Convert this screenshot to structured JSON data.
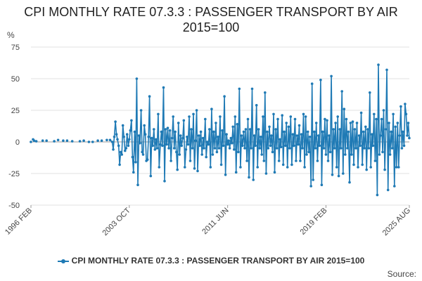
{
  "chart_data": {
    "type": "line",
    "title": "CPI MONTHLY RATE 07.3.3 : PASSENGER TRANSPORT BY AIR 2015=100",
    "ylabel": "%",
    "xlabel": "",
    "ylim": [
      -50,
      75
    ],
    "yticks": [
      -50,
      -25,
      0,
      25,
      50,
      75
    ],
    "xticks": [
      {
        "label": "1996 FEB",
        "x": 1996.083
      },
      {
        "label": "2003 OCT",
        "x": 2003.75
      },
      {
        "label": "2011 JUN",
        "x": 2011.417
      },
      {
        "label": "2019 FEB",
        "x": 2019.083
      },
      {
        "label": "2025 AUG",
        "x": 2025.583
      }
    ],
    "xlim": [
      1996.083,
      2025.583
    ],
    "grid": "horizontal",
    "legend_placement": "bottom",
    "colors": {
      "series": "#1f7ab5",
      "grid": "#e0e0e0",
      "zero_line": "#999999"
    },
    "series": [
      {
        "name": "CPI MONTHLY RATE 07.3.3 : PASSENGER TRANSPORT BY AIR 2015=100",
        "points": [
          [
            1996.08,
            0
          ],
          [
            1996.25,
            2
          ],
          [
            1996.33,
            1
          ],
          [
            1996.5,
            0.5
          ],
          [
            1997.0,
            1
          ],
          [
            1997.3,
            1
          ],
          [
            1997.9,
            0.5
          ],
          [
            1998.2,
            1.5
          ],
          [
            1998.6,
            1
          ],
          [
            1998.9,
            1
          ],
          [
            1999.3,
            0.5
          ],
          [
            1999.9,
            0.5
          ],
          [
            2000.2,
            1
          ],
          [
            2000.6,
            0
          ],
          [
            2000.9,
            0
          ],
          [
            2001.3,
            1
          ],
          [
            2001.6,
            1
          ],
          [
            2002.0,
            1.5
          ],
          [
            2002.25,
            1.5
          ],
          [
            2002.42,
            0
          ],
          [
            2002.5,
            -6
          ],
          [
            2002.58,
            4
          ],
          [
            2002.67,
            16
          ],
          [
            2002.75,
            6
          ],
          [
            2002.83,
            2
          ],
          [
            2002.92,
            -3
          ],
          [
            2003.0,
            -18
          ],
          [
            2003.08,
            -8
          ],
          [
            2003.17,
            -10
          ],
          [
            2003.25,
            13
          ],
          [
            2003.33,
            4
          ],
          [
            2003.42,
            -7
          ],
          [
            2003.5,
            -5
          ],
          [
            2003.58,
            6
          ],
          [
            2003.67,
            -3
          ],
          [
            2003.75,
            2
          ],
          [
            2003.83,
            9
          ],
          [
            2003.92,
            17
          ],
          [
            2004.0,
            -12
          ],
          [
            2004.08,
            -24
          ],
          [
            2004.17,
            8
          ],
          [
            2004.25,
            -16
          ],
          [
            2004.33,
            50
          ],
          [
            2004.42,
            -34
          ],
          [
            2004.5,
            5
          ],
          [
            2004.58,
            -1
          ],
          [
            2004.67,
            25
          ],
          [
            2004.75,
            -8
          ],
          [
            2004.83,
            -10
          ],
          [
            2004.92,
            13
          ],
          [
            2005.0,
            6
          ],
          [
            2005.08,
            -15
          ],
          [
            2005.17,
            -14
          ],
          [
            2005.25,
            4
          ],
          [
            2005.33,
            36
          ],
          [
            2005.42,
            -27
          ],
          [
            2005.5,
            3
          ],
          [
            2005.58,
            -3
          ],
          [
            2005.67,
            10
          ],
          [
            2005.75,
            -6
          ],
          [
            2005.83,
            2
          ],
          [
            2005.92,
            -5
          ],
          [
            2006.0,
            22
          ],
          [
            2006.08,
            -20
          ],
          [
            2006.17,
            -2
          ],
          [
            2006.25,
            8
          ],
          [
            2006.33,
            -3
          ],
          [
            2006.42,
            43
          ],
          [
            2006.5,
            -31
          ],
          [
            2006.58,
            10
          ],
          [
            2006.67,
            -2
          ],
          [
            2006.75,
            11
          ],
          [
            2006.83,
            -5
          ],
          [
            2006.92,
            9
          ],
          [
            2007.0,
            -15
          ],
          [
            2007.08,
            3
          ],
          [
            2007.17,
            20
          ],
          [
            2007.25,
            -5
          ],
          [
            2007.33,
            8
          ],
          [
            2007.42,
            -8
          ],
          [
            2007.5,
            -22
          ],
          [
            2007.58,
            15
          ],
          [
            2007.67,
            -10
          ],
          [
            2007.75,
            5
          ],
          [
            2007.83,
            -3
          ],
          [
            2007.92,
            3
          ],
          [
            2008.0,
            17
          ],
          [
            2008.08,
            -20
          ],
          [
            2008.17,
            -6
          ],
          [
            2008.25,
            4
          ],
          [
            2008.33,
            -2
          ],
          [
            2008.42,
            20
          ],
          [
            2008.5,
            -15
          ],
          [
            2008.58,
            10
          ],
          [
            2008.67,
            -5
          ],
          [
            2008.75,
            22
          ],
          [
            2008.83,
            -21
          ],
          [
            2008.92,
            1
          ],
          [
            2009.0,
            25
          ],
          [
            2009.08,
            -23
          ],
          [
            2009.17,
            5
          ],
          [
            2009.25,
            -3
          ],
          [
            2009.33,
            8
          ],
          [
            2009.42,
            -10
          ],
          [
            2009.5,
            3
          ],
          [
            2009.58,
            -5
          ],
          [
            2009.67,
            18
          ],
          [
            2009.75,
            -12
          ],
          [
            2009.83,
            0
          ],
          [
            2009.92,
            -2
          ],
          [
            2010.0,
            10
          ],
          [
            2010.08,
            -20
          ],
          [
            2010.17,
            26
          ],
          [
            2010.25,
            -10
          ],
          [
            2010.33,
            8
          ],
          [
            2010.42,
            -5
          ],
          [
            2010.5,
            15
          ],
          [
            2010.58,
            -8
          ],
          [
            2010.67,
            4
          ],
          [
            2010.75,
            -5
          ],
          [
            2010.83,
            20
          ],
          [
            2010.92,
            -18
          ],
          [
            2011.0,
            9
          ],
          [
            2011.08,
            -3
          ],
          [
            2011.17,
            36
          ],
          [
            2011.25,
            -26
          ],
          [
            2011.33,
            6
          ],
          [
            2011.42,
            -2
          ],
          [
            2011.5,
            1
          ],
          [
            2011.58,
            -5
          ],
          [
            2011.67,
            3
          ],
          [
            2011.75,
            -1
          ],
          [
            2011.83,
            12
          ],
          [
            2011.92,
            -6
          ],
          [
            2012.0,
            20
          ],
          [
            2012.08,
            -24
          ],
          [
            2012.17,
            14
          ],
          [
            2012.25,
            -8
          ],
          [
            2012.33,
            42
          ],
          [
            2012.42,
            -20
          ],
          [
            2012.5,
            5
          ],
          [
            2012.58,
            -3
          ],
          [
            2012.67,
            8
          ],
          [
            2012.75,
            -5
          ],
          [
            2012.83,
            10
          ],
          [
            2012.92,
            -15
          ],
          [
            2013.0,
            18
          ],
          [
            2013.08,
            -28
          ],
          [
            2013.17,
            10
          ],
          [
            2013.25,
            -5
          ],
          [
            2013.33,
            42
          ],
          [
            2013.42,
            -30
          ],
          [
            2013.5,
            5
          ],
          [
            2013.58,
            -3
          ],
          [
            2013.67,
            29
          ],
          [
            2013.75,
            -20
          ],
          [
            2013.83,
            10
          ],
          [
            2013.92,
            -5
          ],
          [
            2014.0,
            4
          ],
          [
            2014.08,
            -10
          ],
          [
            2014.17,
            20
          ],
          [
            2014.25,
            -15
          ],
          [
            2014.33,
            39
          ],
          [
            2014.42,
            -25
          ],
          [
            2014.5,
            8
          ],
          [
            2014.58,
            -5
          ],
          [
            2014.67,
            12
          ],
          [
            2014.75,
            -3
          ],
          [
            2014.83,
            5
          ],
          [
            2014.92,
            -8
          ],
          [
            2015.0,
            22
          ],
          [
            2015.08,
            -24
          ],
          [
            2015.17,
            10
          ],
          [
            2015.25,
            -5
          ],
          [
            2015.33,
            18
          ],
          [
            2015.42,
            -15
          ],
          [
            2015.5,
            2
          ],
          [
            2015.58,
            -4
          ],
          [
            2015.67,
            21
          ],
          [
            2015.75,
            -18
          ],
          [
            2015.83,
            8
          ],
          [
            2015.92,
            -3
          ],
          [
            2016.0,
            15
          ],
          [
            2016.08,
            -20
          ],
          [
            2016.17,
            12
          ],
          [
            2016.25,
            -5
          ],
          [
            2016.33,
            20
          ],
          [
            2016.42,
            -18
          ],
          [
            2016.5,
            6
          ],
          [
            2016.58,
            -3
          ],
          [
            2016.67,
            18
          ],
          [
            2016.75,
            -15
          ],
          [
            2016.83,
            5
          ],
          [
            2016.92,
            -2
          ],
          [
            2017.0,
            13
          ],
          [
            2017.08,
            -15
          ],
          [
            2017.17,
            6
          ],
          [
            2017.25,
            -5
          ],
          [
            2017.33,
            22
          ],
          [
            2017.42,
            -20
          ],
          [
            2017.5,
            20
          ],
          [
            2017.58,
            -10
          ],
          [
            2017.67,
            8
          ],
          [
            2017.75,
            -8
          ],
          [
            2017.83,
            4
          ],
          [
            2017.92,
            -35
          ],
          [
            2018.0,
            46
          ],
          [
            2018.08,
            -30
          ],
          [
            2018.17,
            8
          ],
          [
            2018.25,
            -5
          ],
          [
            2018.33,
            15
          ],
          [
            2018.42,
            -15
          ],
          [
            2018.5,
            5
          ],
          [
            2018.58,
            -3
          ],
          [
            2018.67,
            49
          ],
          [
            2018.75,
            -34
          ],
          [
            2018.83,
            8
          ],
          [
            2018.92,
            -5
          ],
          [
            2019.0,
            18
          ],
          [
            2019.08,
            -10
          ],
          [
            2019.17,
            17
          ],
          [
            2019.25,
            -15
          ],
          [
            2019.33,
            5
          ],
          [
            2019.42,
            -8
          ],
          [
            2019.5,
            52
          ],
          [
            2019.58,
            -26
          ],
          [
            2019.67,
            10
          ],
          [
            2019.75,
            -5
          ],
          [
            2019.83,
            15
          ],
          [
            2019.92,
            -20
          ],
          [
            2020.0,
            20
          ],
          [
            2020.08,
            -27
          ],
          [
            2020.17,
            10
          ],
          [
            2020.25,
            -5
          ],
          [
            2020.33,
            40
          ],
          [
            2020.42,
            -25
          ],
          [
            2020.5,
            26
          ],
          [
            2020.58,
            -10
          ],
          [
            2020.67,
            18
          ],
          [
            2020.75,
            -5
          ],
          [
            2020.83,
            8
          ],
          [
            2020.92,
            -32
          ],
          [
            2021.0,
            15
          ],
          [
            2021.08,
            -10
          ],
          [
            2021.17,
            16
          ],
          [
            2021.25,
            -18
          ],
          [
            2021.33,
            10
          ],
          [
            2021.42,
            -5
          ],
          [
            2021.5,
            15
          ],
          [
            2021.58,
            -20
          ],
          [
            2021.67,
            5
          ],
          [
            2021.75,
            -3
          ],
          [
            2021.83,
            23
          ],
          [
            2021.92,
            -18
          ],
          [
            2022.0,
            8
          ],
          [
            2022.08,
            -5
          ],
          [
            2022.17,
            12
          ],
          [
            2022.25,
            -22
          ],
          [
            2022.33,
            10
          ],
          [
            2022.42,
            -5
          ],
          [
            2022.5,
            39
          ],
          [
            2022.58,
            -20
          ],
          [
            2022.67,
            6
          ],
          [
            2022.75,
            -3
          ],
          [
            2022.83,
            22
          ],
          [
            2022.92,
            -15
          ],
          [
            2023.0,
            18
          ],
          [
            2023.08,
            -42
          ],
          [
            2023.17,
            61
          ],
          [
            2023.25,
            -10
          ],
          [
            2023.33,
            5
          ],
          [
            2023.42,
            18
          ],
          [
            2023.5,
            -8
          ],
          [
            2023.58,
            25
          ],
          [
            2023.67,
            -22
          ],
          [
            2023.75,
            10
          ],
          [
            2023.83,
            57
          ],
          [
            2023.92,
            -38
          ],
          [
            2024.0,
            15
          ],
          [
            2024.08,
            -10
          ],
          [
            2024.17,
            8
          ],
          [
            2024.25,
            -5
          ],
          [
            2024.33,
            22
          ],
          [
            2024.42,
            -35
          ],
          [
            2024.5,
            12
          ],
          [
            2024.58,
            -20
          ],
          [
            2024.67,
            15
          ],
          [
            2024.75,
            -20
          ],
          [
            2024.83,
            5
          ],
          [
            2024.92,
            28
          ],
          [
            2025.0,
            -5
          ],
          [
            2025.08,
            8
          ],
          [
            2025.17,
            -3
          ],
          [
            2025.25,
            30
          ],
          [
            2025.33,
            22
          ],
          [
            2025.42,
            5
          ],
          [
            2025.5,
            15
          ],
          [
            2025.58,
            3
          ]
        ]
      }
    ]
  },
  "legend": {
    "label": "CPI MONTHLY RATE 07.3.3 : PASSENGER TRANSPORT BY AIR 2015=100"
  },
  "source": {
    "label": "Source:"
  }
}
